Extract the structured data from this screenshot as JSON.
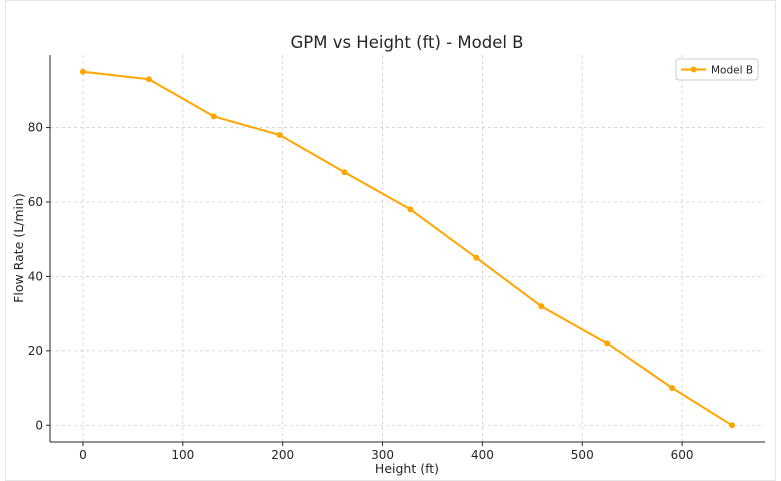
{
  "chart_data": {
    "type": "line",
    "title": "GPM vs Height (ft) - Model B",
    "xlabel": "Height (ft)",
    "ylabel": "Flow Rate (L/min)",
    "xlim": [
      -33,
      683
    ],
    "ylim": [
      -4.5,
      99.5
    ],
    "xticks": [
      0,
      100,
      200,
      300,
      400,
      500,
      600
    ],
    "yticks": [
      0,
      20,
      40,
      60,
      80
    ],
    "grid": true,
    "legend_position": "top-right",
    "series": [
      {
        "name": "Model B",
        "color": "#FFA500",
        "marker": "circle",
        "x": [
          0,
          66,
          131,
          197,
          262,
          328,
          394,
          459,
          525,
          590,
          650
        ],
        "y": [
          95,
          93,
          83,
          78,
          68,
          58,
          45,
          32,
          22,
          10,
          0
        ]
      }
    ]
  }
}
